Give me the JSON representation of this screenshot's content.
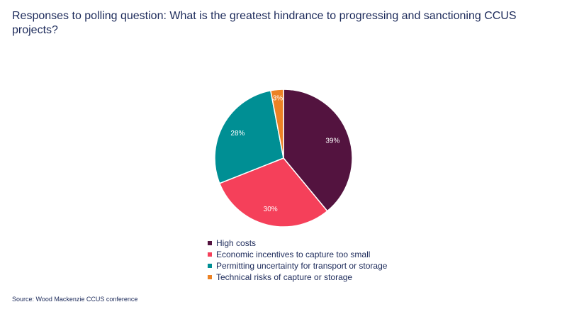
{
  "chart_data": {
    "type": "pie",
    "title": "Responses to polling question: What is the greatest hindrance to progressing and sanctioning CCUS projects?",
    "slices": [
      {
        "label": "High costs",
        "value": 39,
        "display": "39%",
        "color": "#53133f"
      },
      {
        "label": "Economic incentives to capture too small",
        "value": 30,
        "display": "30%",
        "color": "#f5405a"
      },
      {
        "label": "Permitting uncertainty for transport or storage",
        "value": 28,
        "display": "28%",
        "color": "#008f94"
      },
      {
        "label": "Technical risks of capture or storage",
        "value": 3,
        "display": "3%",
        "color": "#ec8224"
      }
    ],
    "legend_position": "bottom",
    "source": "Source: Wood Mackenzie CCUS conference"
  }
}
